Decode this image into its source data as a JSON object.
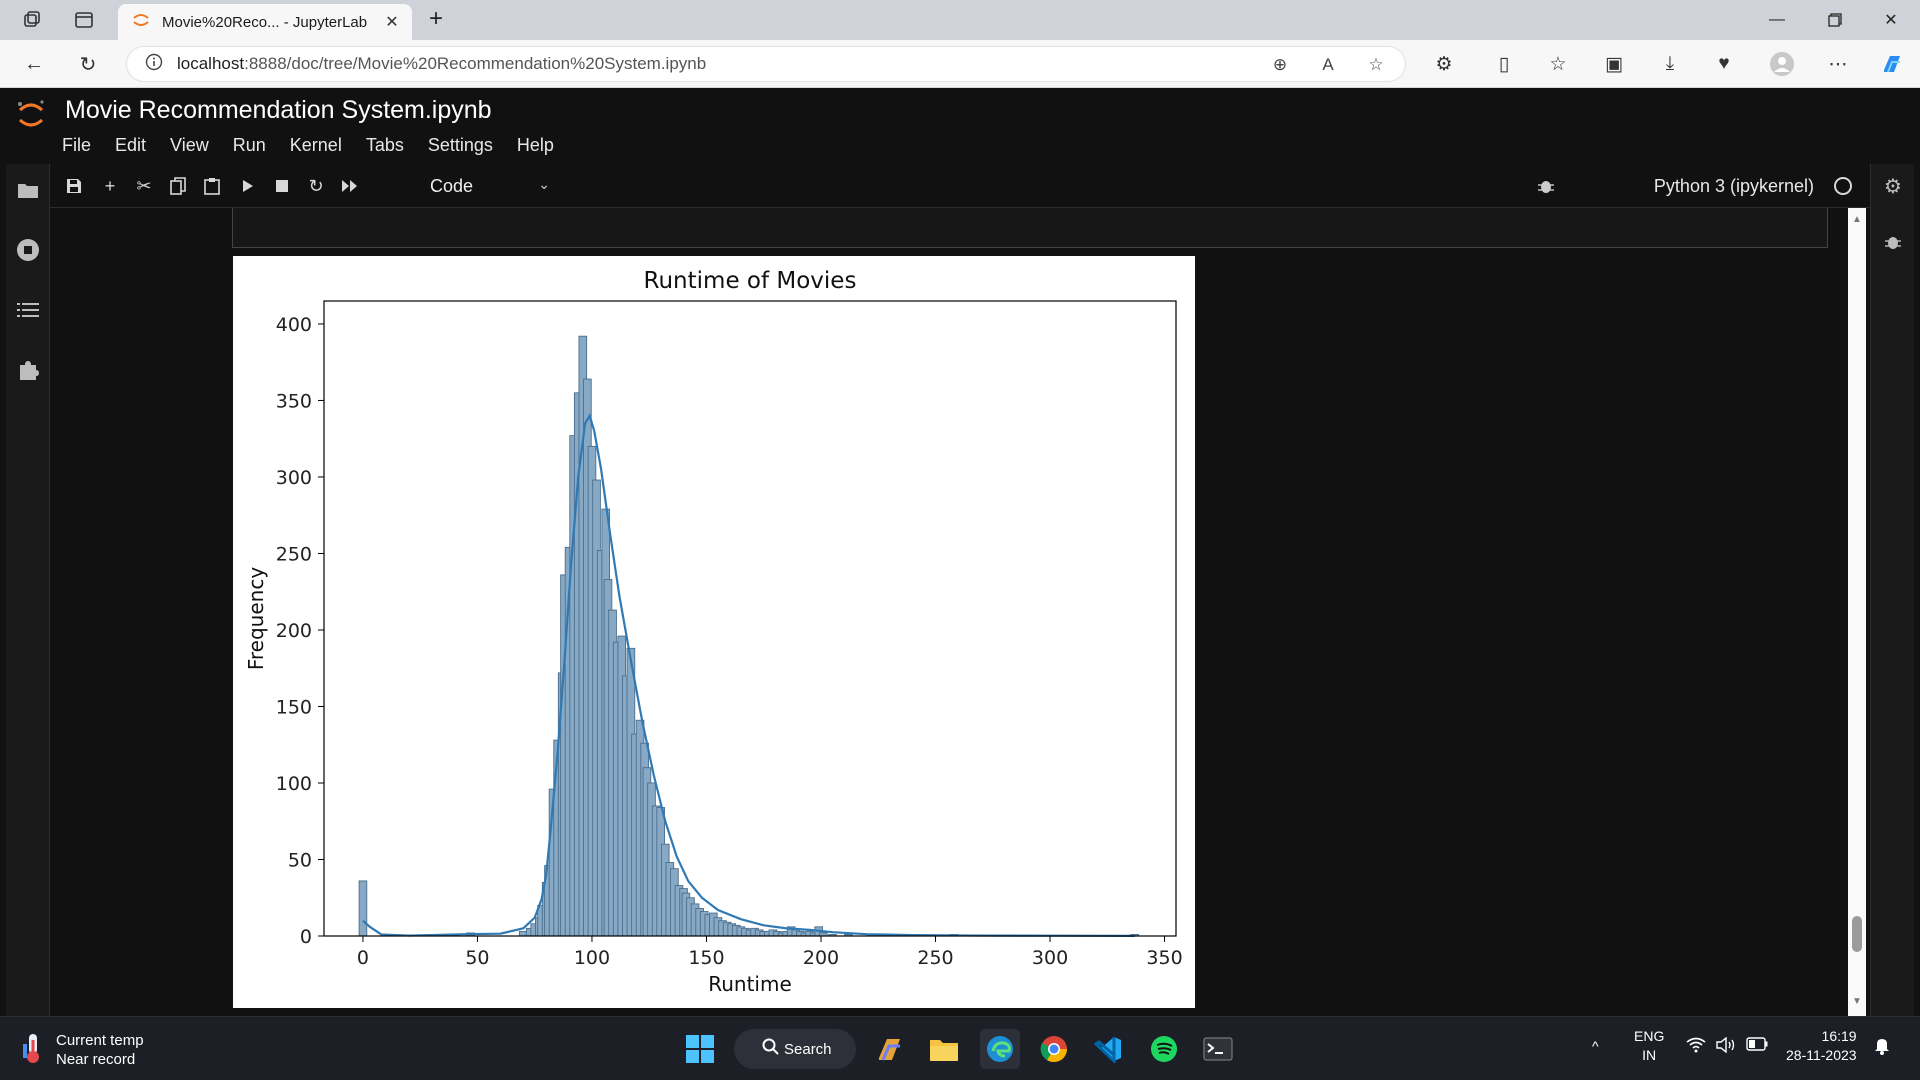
{
  "browser": {
    "tab_title": "Movie%20Reco... - JupyterLab",
    "url_host": "localhost",
    "url_path": ":8888/doc/tree/Movie%20Recommendation%20System.ipynb"
  },
  "jupyter": {
    "notebook_title": "Movie Recommendation System.ipynb",
    "menu": [
      "File",
      "Edit",
      "View",
      "Run",
      "Kernel",
      "Tabs",
      "Settings",
      "Help"
    ],
    "cell_type": "Code",
    "kernel_name": "Python 3 (ipykernel)"
  },
  "chart_data": {
    "type": "bar",
    "title": "Runtime of Movies",
    "xlabel": "Runtime",
    "ylabel": "Frequency",
    "xlim": [
      -17,
      355
    ],
    "ylim": [
      0,
      415
    ],
    "xticks": [
      0,
      50,
      100,
      150,
      200,
      250,
      300,
      350
    ],
    "yticks": [
      0,
      50,
      100,
      150,
      200,
      250,
      300,
      350,
      400
    ],
    "bin_width": 3.36,
    "bins": [
      {
        "x": 0,
        "y": 36
      },
      {
        "x": 40,
        "y": 1
      },
      {
        "x": 47,
        "y": 2
      },
      {
        "x": 70,
        "y": 3
      },
      {
        "x": 73,
        "y": 5
      },
      {
        "x": 75,
        "y": 8
      },
      {
        "x": 77,
        "y": 12
      },
      {
        "x": 78,
        "y": 20
      },
      {
        "x": 80,
        "y": 35
      },
      {
        "x": 81,
        "y": 46
      },
      {
        "x": 83,
        "y": 96
      },
      {
        "x": 85,
        "y": 128
      },
      {
        "x": 87,
        "y": 172
      },
      {
        "x": 88,
        "y": 236
      },
      {
        "x": 90,
        "y": 254
      },
      {
        "x": 92,
        "y": 327
      },
      {
        "x": 94,
        "y": 355
      },
      {
        "x": 96,
        "y": 392
      },
      {
        "x": 98,
        "y": 364
      },
      {
        "x": 100,
        "y": 320
      },
      {
        "x": 102,
        "y": 298
      },
      {
        "x": 104,
        "y": 252
      },
      {
        "x": 106,
        "y": 279
      },
      {
        "x": 107,
        "y": 233
      },
      {
        "x": 109,
        "y": 213
      },
      {
        "x": 111,
        "y": 192
      },
      {
        "x": 113,
        "y": 196
      },
      {
        "x": 115,
        "y": 170
      },
      {
        "x": 117,
        "y": 188
      },
      {
        "x": 119,
        "y": 132
      },
      {
        "x": 121,
        "y": 141
      },
      {
        "x": 123,
        "y": 126
      },
      {
        "x": 124,
        "y": 110
      },
      {
        "x": 126,
        "y": 100
      },
      {
        "x": 128,
        "y": 85
      },
      {
        "x": 130,
        "y": 84
      },
      {
        "x": 132,
        "y": 60
      },
      {
        "x": 134,
        "y": 48
      },
      {
        "x": 136,
        "y": 44
      },
      {
        "x": 138,
        "y": 33
      },
      {
        "x": 140,
        "y": 31
      },
      {
        "x": 141,
        "y": 28
      },
      {
        "x": 143,
        "y": 25
      },
      {
        "x": 145,
        "y": 21
      },
      {
        "x": 147,
        "y": 18
      },
      {
        "x": 149,
        "y": 16
      },
      {
        "x": 151,
        "y": 14
      },
      {
        "x": 153,
        "y": 15
      },
      {
        "x": 155,
        "y": 12
      },
      {
        "x": 157,
        "y": 10
      },
      {
        "x": 159,
        "y": 9
      },
      {
        "x": 161,
        "y": 8
      },
      {
        "x": 163,
        "y": 7
      },
      {
        "x": 165,
        "y": 6
      },
      {
        "x": 167,
        "y": 5
      },
      {
        "x": 169,
        "y": 4
      },
      {
        "x": 171,
        "y": 5
      },
      {
        "x": 173,
        "y": 4
      },
      {
        "x": 175,
        "y": 3
      },
      {
        "x": 177,
        "y": 3
      },
      {
        "x": 179,
        "y": 4
      },
      {
        "x": 181,
        "y": 3
      },
      {
        "x": 183,
        "y": 2
      },
      {
        "x": 185,
        "y": 3
      },
      {
        "x": 187,
        "y": 6
      },
      {
        "x": 189,
        "y": 4
      },
      {
        "x": 191,
        "y": 3
      },
      {
        "x": 193,
        "y": 2
      },
      {
        "x": 195,
        "y": 3
      },
      {
        "x": 197,
        "y": 2
      },
      {
        "x": 199,
        "y": 6
      },
      {
        "x": 201,
        "y": 2
      },
      {
        "x": 205,
        "y": 1
      },
      {
        "x": 212,
        "y": 1
      },
      {
        "x": 222,
        "y": 1
      },
      {
        "x": 240,
        "y": 1
      },
      {
        "x": 258,
        "y": 1
      },
      {
        "x": 337,
        "y": 1
      }
    ],
    "kde": [
      [
        0,
        10
      ],
      [
        3,
        6
      ],
      [
        8,
        1
      ],
      [
        20,
        0.3
      ],
      [
        45,
        1.2
      ],
      [
        60,
        1.5
      ],
      [
        70,
        5
      ],
      [
        75,
        12
      ],
      [
        78,
        24
      ],
      [
        80,
        40
      ],
      [
        82,
        70
      ],
      [
        85,
        120
      ],
      [
        88,
        180
      ],
      [
        91,
        245
      ],
      [
        94,
        300
      ],
      [
        97,
        335
      ],
      [
        99,
        340
      ],
      [
        101,
        330
      ],
      [
        104,
        305
      ],
      [
        108,
        262
      ],
      [
        112,
        222
      ],
      [
        117,
        180
      ],
      [
        122,
        140
      ],
      [
        127,
        105
      ],
      [
        132,
        75
      ],
      [
        137,
        52
      ],
      [
        142,
        36
      ],
      [
        148,
        25
      ],
      [
        155,
        17
      ],
      [
        165,
        11
      ],
      [
        175,
        7
      ],
      [
        185,
        5
      ],
      [
        195,
        4
      ],
      [
        205,
        2.5
      ],
      [
        220,
        1.2
      ],
      [
        240,
        0.6
      ],
      [
        270,
        0.3
      ],
      [
        300,
        0.2
      ],
      [
        337,
        0.1
      ]
    ],
    "bar_fill": "#87a9c5",
    "bar_edge": "#4a6f8d",
    "line_color": "#2f79b5"
  },
  "taskbar": {
    "weather_line1": "Current temp",
    "weather_line2": "Near record",
    "search_label": "Search",
    "lang_line1": "ENG",
    "lang_line2": "IN",
    "time": "16:19",
    "date": "28-11-2023"
  }
}
